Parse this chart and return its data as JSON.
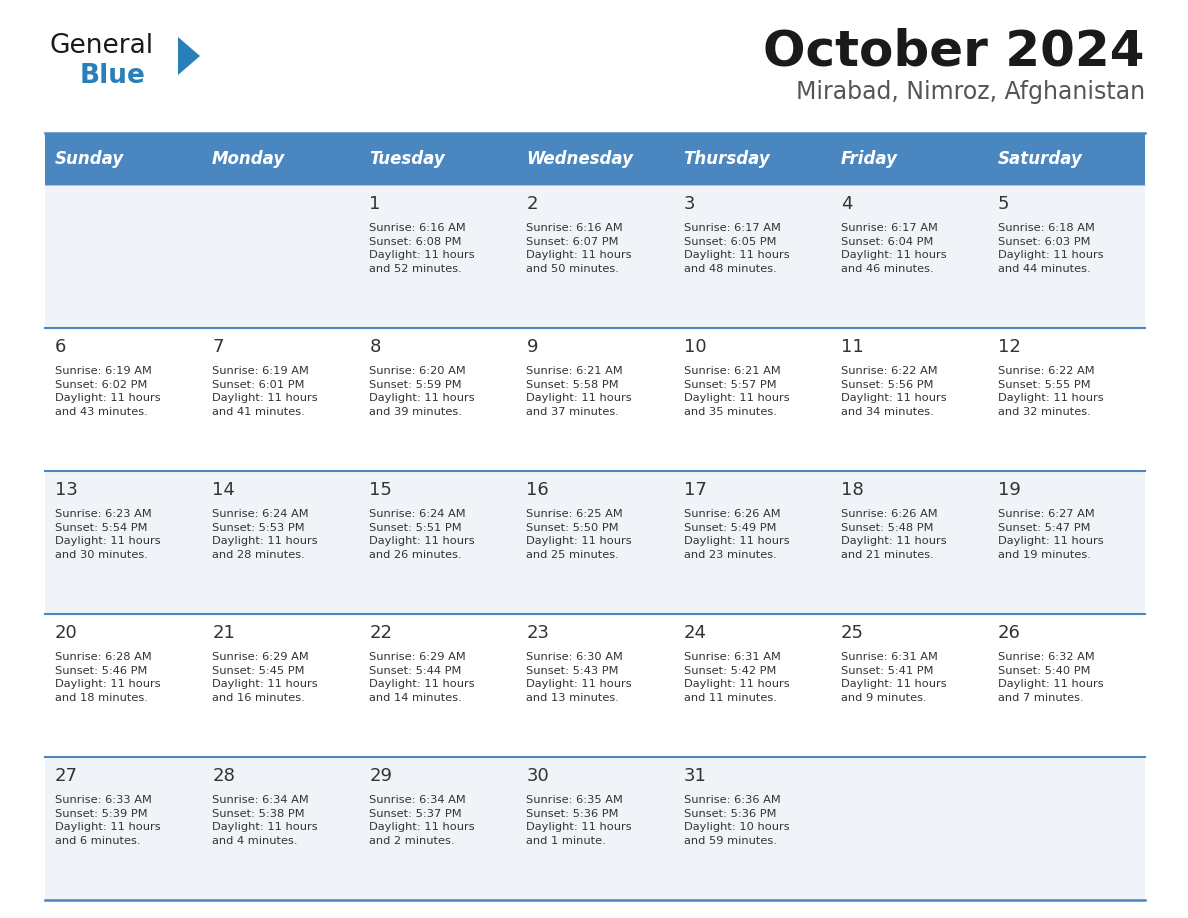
{
  "title": "October 2024",
  "subtitle": "Mirabad, Nimroz, Afghanistan",
  "header_bg": "#4a86c0",
  "header_text_color": "#ffffff",
  "days_of_week": [
    "Sunday",
    "Monday",
    "Tuesday",
    "Wednesday",
    "Thursday",
    "Friday",
    "Saturday"
  ],
  "row_bg_odd": "#f0f4f8",
  "row_bg_even": "#ffffff",
  "cell_text_color": "#333333",
  "separator_color": "#4a86c0",
  "calendar": [
    [
      {
        "day": "",
        "sunrise": "",
        "sunset": "",
        "daylight": ""
      },
      {
        "day": "",
        "sunrise": "",
        "sunset": "",
        "daylight": ""
      },
      {
        "day": "1",
        "sunrise": "Sunrise: 6:16 AM",
        "sunset": "Sunset: 6:08 PM",
        "daylight": "Daylight: 11 hours\nand 52 minutes."
      },
      {
        "day": "2",
        "sunrise": "Sunrise: 6:16 AM",
        "sunset": "Sunset: 6:07 PM",
        "daylight": "Daylight: 11 hours\nand 50 minutes."
      },
      {
        "day": "3",
        "sunrise": "Sunrise: 6:17 AM",
        "sunset": "Sunset: 6:05 PM",
        "daylight": "Daylight: 11 hours\nand 48 minutes."
      },
      {
        "day": "4",
        "sunrise": "Sunrise: 6:17 AM",
        "sunset": "Sunset: 6:04 PM",
        "daylight": "Daylight: 11 hours\nand 46 minutes."
      },
      {
        "day": "5",
        "sunrise": "Sunrise: 6:18 AM",
        "sunset": "Sunset: 6:03 PM",
        "daylight": "Daylight: 11 hours\nand 44 minutes."
      }
    ],
    [
      {
        "day": "6",
        "sunrise": "Sunrise: 6:19 AM",
        "sunset": "Sunset: 6:02 PM",
        "daylight": "Daylight: 11 hours\nand 43 minutes."
      },
      {
        "day": "7",
        "sunrise": "Sunrise: 6:19 AM",
        "sunset": "Sunset: 6:01 PM",
        "daylight": "Daylight: 11 hours\nand 41 minutes."
      },
      {
        "day": "8",
        "sunrise": "Sunrise: 6:20 AM",
        "sunset": "Sunset: 5:59 PM",
        "daylight": "Daylight: 11 hours\nand 39 minutes."
      },
      {
        "day": "9",
        "sunrise": "Sunrise: 6:21 AM",
        "sunset": "Sunset: 5:58 PM",
        "daylight": "Daylight: 11 hours\nand 37 minutes."
      },
      {
        "day": "10",
        "sunrise": "Sunrise: 6:21 AM",
        "sunset": "Sunset: 5:57 PM",
        "daylight": "Daylight: 11 hours\nand 35 minutes."
      },
      {
        "day": "11",
        "sunrise": "Sunrise: 6:22 AM",
        "sunset": "Sunset: 5:56 PM",
        "daylight": "Daylight: 11 hours\nand 34 minutes."
      },
      {
        "day": "12",
        "sunrise": "Sunrise: 6:22 AM",
        "sunset": "Sunset: 5:55 PM",
        "daylight": "Daylight: 11 hours\nand 32 minutes."
      }
    ],
    [
      {
        "day": "13",
        "sunrise": "Sunrise: 6:23 AM",
        "sunset": "Sunset: 5:54 PM",
        "daylight": "Daylight: 11 hours\nand 30 minutes."
      },
      {
        "day": "14",
        "sunrise": "Sunrise: 6:24 AM",
        "sunset": "Sunset: 5:53 PM",
        "daylight": "Daylight: 11 hours\nand 28 minutes."
      },
      {
        "day": "15",
        "sunrise": "Sunrise: 6:24 AM",
        "sunset": "Sunset: 5:51 PM",
        "daylight": "Daylight: 11 hours\nand 26 minutes."
      },
      {
        "day": "16",
        "sunrise": "Sunrise: 6:25 AM",
        "sunset": "Sunset: 5:50 PM",
        "daylight": "Daylight: 11 hours\nand 25 minutes."
      },
      {
        "day": "17",
        "sunrise": "Sunrise: 6:26 AM",
        "sunset": "Sunset: 5:49 PM",
        "daylight": "Daylight: 11 hours\nand 23 minutes."
      },
      {
        "day": "18",
        "sunrise": "Sunrise: 6:26 AM",
        "sunset": "Sunset: 5:48 PM",
        "daylight": "Daylight: 11 hours\nand 21 minutes."
      },
      {
        "day": "19",
        "sunrise": "Sunrise: 6:27 AM",
        "sunset": "Sunset: 5:47 PM",
        "daylight": "Daylight: 11 hours\nand 19 minutes."
      }
    ],
    [
      {
        "day": "20",
        "sunrise": "Sunrise: 6:28 AM",
        "sunset": "Sunset: 5:46 PM",
        "daylight": "Daylight: 11 hours\nand 18 minutes."
      },
      {
        "day": "21",
        "sunrise": "Sunrise: 6:29 AM",
        "sunset": "Sunset: 5:45 PM",
        "daylight": "Daylight: 11 hours\nand 16 minutes."
      },
      {
        "day": "22",
        "sunrise": "Sunrise: 6:29 AM",
        "sunset": "Sunset: 5:44 PM",
        "daylight": "Daylight: 11 hours\nand 14 minutes."
      },
      {
        "day": "23",
        "sunrise": "Sunrise: 6:30 AM",
        "sunset": "Sunset: 5:43 PM",
        "daylight": "Daylight: 11 hours\nand 13 minutes."
      },
      {
        "day": "24",
        "sunrise": "Sunrise: 6:31 AM",
        "sunset": "Sunset: 5:42 PM",
        "daylight": "Daylight: 11 hours\nand 11 minutes."
      },
      {
        "day": "25",
        "sunrise": "Sunrise: 6:31 AM",
        "sunset": "Sunset: 5:41 PM",
        "daylight": "Daylight: 11 hours\nand 9 minutes."
      },
      {
        "day": "26",
        "sunrise": "Sunrise: 6:32 AM",
        "sunset": "Sunset: 5:40 PM",
        "daylight": "Daylight: 11 hours\nand 7 minutes."
      }
    ],
    [
      {
        "day": "27",
        "sunrise": "Sunrise: 6:33 AM",
        "sunset": "Sunset: 5:39 PM",
        "daylight": "Daylight: 11 hours\nand 6 minutes."
      },
      {
        "day": "28",
        "sunrise": "Sunrise: 6:34 AM",
        "sunset": "Sunset: 5:38 PM",
        "daylight": "Daylight: 11 hours\nand 4 minutes."
      },
      {
        "day": "29",
        "sunrise": "Sunrise: 6:34 AM",
        "sunset": "Sunset: 5:37 PM",
        "daylight": "Daylight: 11 hours\nand 2 minutes."
      },
      {
        "day": "30",
        "sunrise": "Sunrise: 6:35 AM",
        "sunset": "Sunset: 5:36 PM",
        "daylight": "Daylight: 11 hours\nand 1 minute."
      },
      {
        "day": "31",
        "sunrise": "Sunrise: 6:36 AM",
        "sunset": "Sunset: 5:36 PM",
        "daylight": "Daylight: 10 hours\nand 59 minutes."
      },
      {
        "day": "",
        "sunrise": "",
        "sunset": "",
        "daylight": ""
      },
      {
        "day": "",
        "sunrise": "",
        "sunset": "",
        "daylight": ""
      }
    ]
  ],
  "logo_general_color": "#1a1a1a",
  "logo_blue_color": "#2980b9",
  "logo_triangle_color": "#2980b9",
  "title_fontsize": 36,
  "subtitle_fontsize": 17,
  "header_fontsize": 12,
  "day_num_fontsize": 13,
  "cell_text_fontsize": 8.2
}
